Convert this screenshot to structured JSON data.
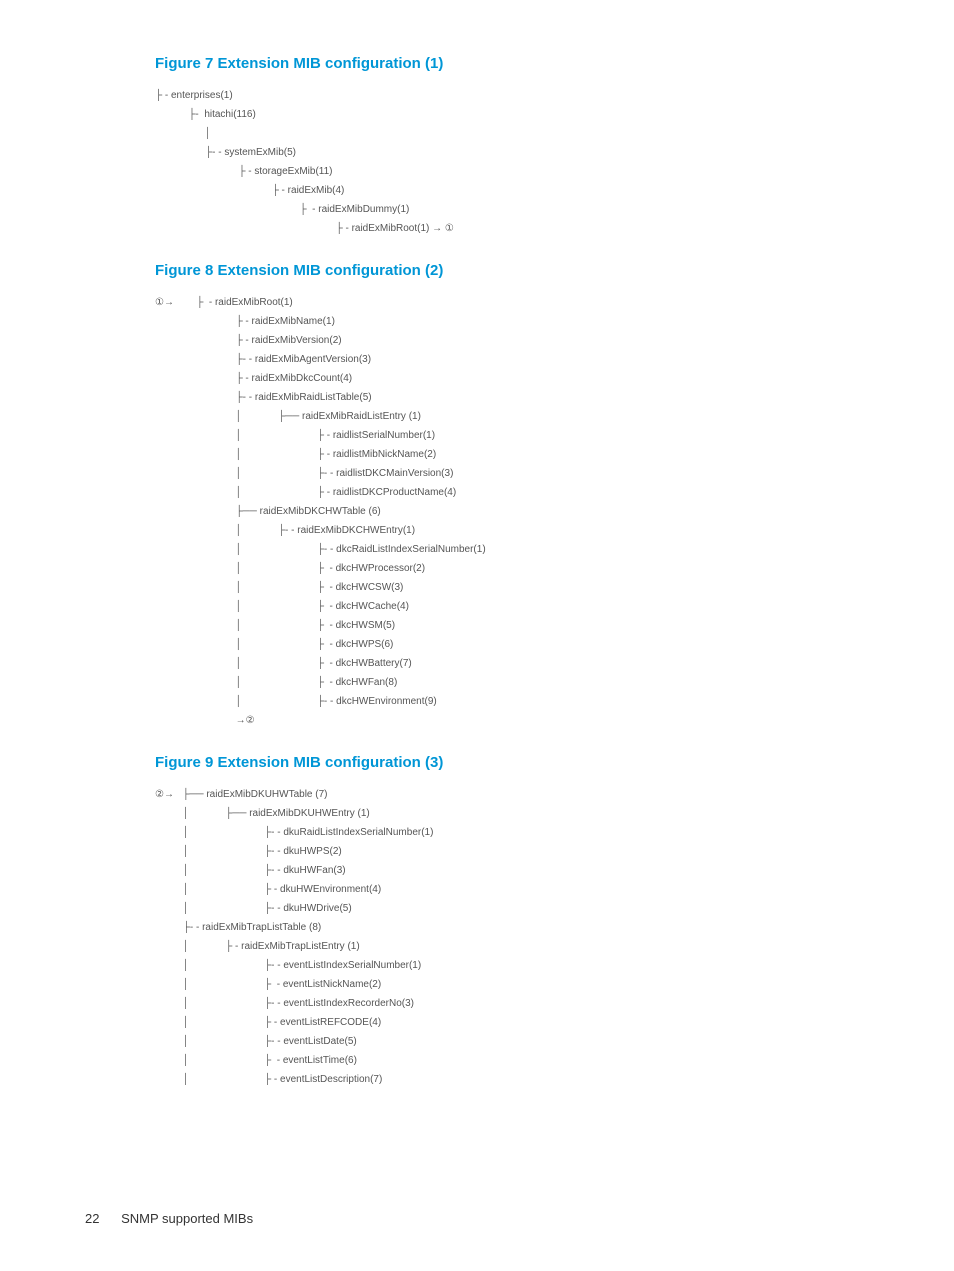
{
  "figures": {
    "fig7": {
      "title": "Figure 7 Extension MIB configuration (1)",
      "nodes": [
        "enterprises(1)",
        "hitachi(116)",
        "systemExMib(5)",
        "storageExMib(11)",
        "raidExMib(4)",
        "raidExMibDummy(1)",
        "raidExMibRoot(1) → ①"
      ]
    },
    "fig8": {
      "title": "Figure 8 Extension MIB configuration (2)",
      "marker": "①→",
      "root": "raidExMibRoot(1)",
      "children1": [
        "raidExMibName(1)",
        "raidExMibVersion(2)",
        "raidExMibAgentVersion(3)",
        "raidExMibDkcCount(4)",
        "raidExMibRaidListTable(5)"
      ],
      "raidListEntry": "raidExMibRaidListEntry (1)",
      "raidListChildren": [
        "raidlistSerialNumber(1)",
        "raidlistMibNickName(2)",
        "raidlistDKCMainVersion(3)",
        "raidlistDKCProductName(4)"
      ],
      "dkcTable": "raidExMibDKCHWTable (6)",
      "dkcEntry": "raidExMibDKCHWEntry(1)",
      "dkcChildren": [
        "dkcRaidListIndexSerialNumber(1)",
        "dkcHWProcessor(2)",
        "dkcHWCSW(3)",
        "dkcHWCache(4)",
        "dkcHWSM(5)",
        "dkcHWPS(6)",
        "dkcHWBattery(7)",
        "dkcHWFan(8)",
        "dkcHWEnvironment(9)"
      ],
      "endMarker": "→②"
    },
    "fig9": {
      "title": "Figure 9 Extension MIB configuration (3)",
      "marker": "②→",
      "dkuTable": "raidExMibDKUHWTable (7)",
      "dkuEntry": "raidExMibDKUHWEntry (1)",
      "dkuChildren": [
        "dkuRaidListIndexSerialNumber(1)",
        "dkuHWPS(2)",
        "dkuHWFan(3)",
        "dkuHWEnvironment(4)",
        "dkuHWDrive(5)"
      ],
      "trapTable": "raidExMibTrapListTable (8)",
      "trapEntry": "raidExMibTrapListEntry (1)",
      "trapChildren": [
        "eventListIndexSerialNumber(1)",
        "eventListNickName(2)",
        "eventListIndexRecorderNo(3)",
        "eventListREFCODE(4)",
        "eventListDate(5)",
        "eventListTime(6)",
        "eventListDescription(7)"
      ]
    }
  },
  "footer": {
    "page": "22",
    "title": "SNMP supported MIBs"
  },
  "colors": {
    "heading": "#0096d6",
    "text": "#555555",
    "bg": "#ffffff"
  }
}
